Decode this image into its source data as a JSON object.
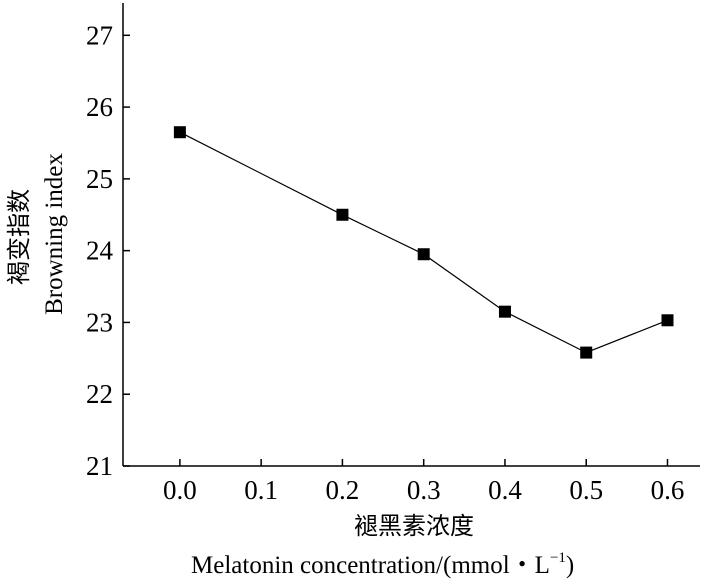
{
  "chart_data": {
    "type": "line",
    "x": [
      0.0,
      0.2,
      0.3,
      0.4,
      0.5,
      0.6
    ],
    "series": [
      {
        "values": [
          25.65,
          24.5,
          23.95,
          23.15,
          22.58,
          23.03
        ],
        "color": "#000000",
        "marker": "square"
      }
    ],
    "x_ticks": [
      "0.0",
      "0.1",
      "0.2",
      "0.3",
      "0.4",
      "0.5",
      "0.6"
    ],
    "y_ticks": [
      "21",
      "22",
      "23",
      "24",
      "25",
      "26",
      "27"
    ],
    "xlim": [
      -0.07,
      0.64
    ],
    "ylim": [
      21,
      27.45
    ],
    "xlabel_cn": "褪黑素浓度",
    "xlabel_en": "Melatonin concentration/(mmol・L",
    "xlabel_sup": "−1",
    "xlabel_close": ")",
    "ylabel_cn": "褐变指数",
    "ylabel_en": "Browning index",
    "grid": false,
    "legend": false
  }
}
